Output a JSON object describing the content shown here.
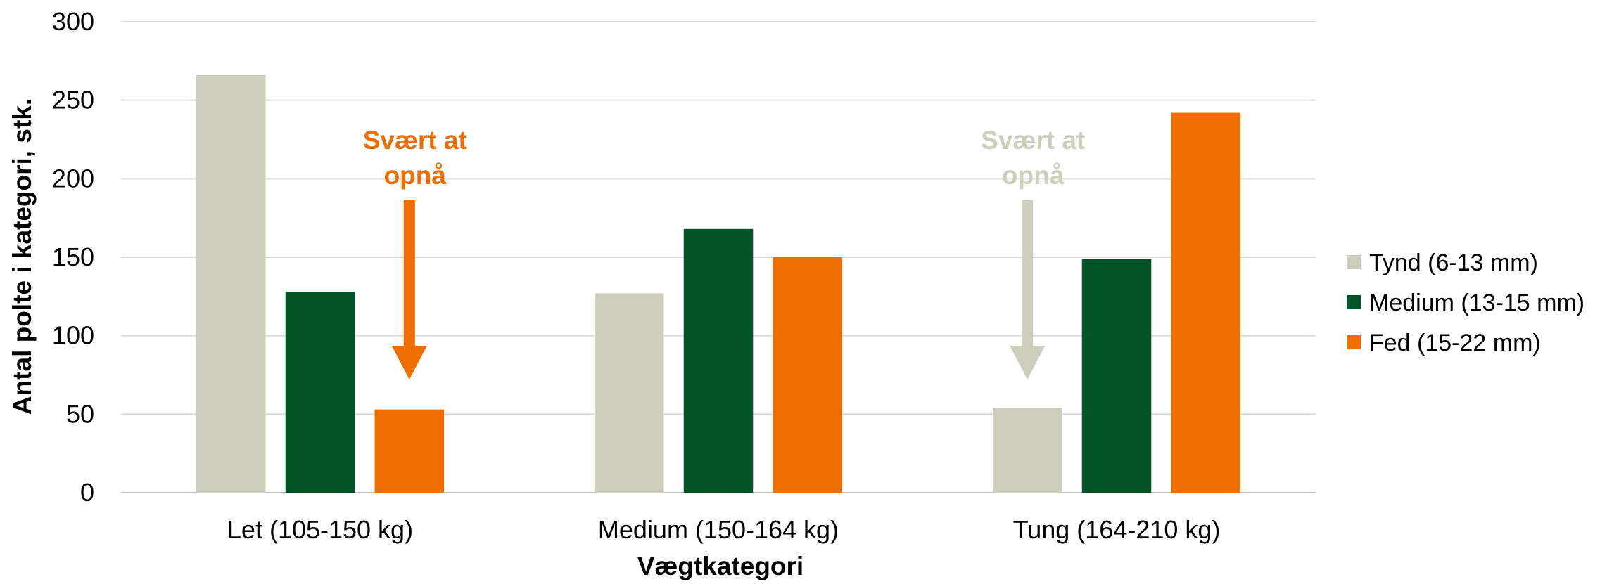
{
  "chart_data": {
    "type": "bar",
    "categories": [
      "Let (105-150 kg)",
      "Medium (150-164 kg)",
      "Tung (164-210 kg)"
    ],
    "series": [
      {
        "name": "Tynd (6-13 mm)",
        "values": [
          266,
          127,
          54
        ],
        "color": "#cecebd"
      },
      {
        "name": "Medium (13-15 mm)",
        "values": [
          128,
          168,
          149
        ],
        "color": "#005425"
      },
      {
        "name": "Fed (15-22 mm)",
        "values": [
          53,
          150,
          242
        ],
        "color": "#ee6e00"
      }
    ],
    "xlabel": "Vægtkategori",
    "ylabel": "Antal polte i kategori, stk.",
    "ylim": [
      0,
      300
    ],
    "yticks": [
      "0",
      "50",
      "100",
      "150",
      "200",
      "250",
      "300"
    ],
    "grid": true,
    "legend_position": "right",
    "annotations": [
      {
        "line1": "Svært at",
        "line2": "opnå",
        "category": "Let (105-150 kg)",
        "series": "Fed (15-22 mm)",
        "color": "#ee6e00"
      },
      {
        "line1": "Svært at",
        "line2": "opnå",
        "category": "Tung (164-210 kg)",
        "series": "Tynd (6-13 mm)",
        "color": "#cecebd"
      }
    ]
  }
}
